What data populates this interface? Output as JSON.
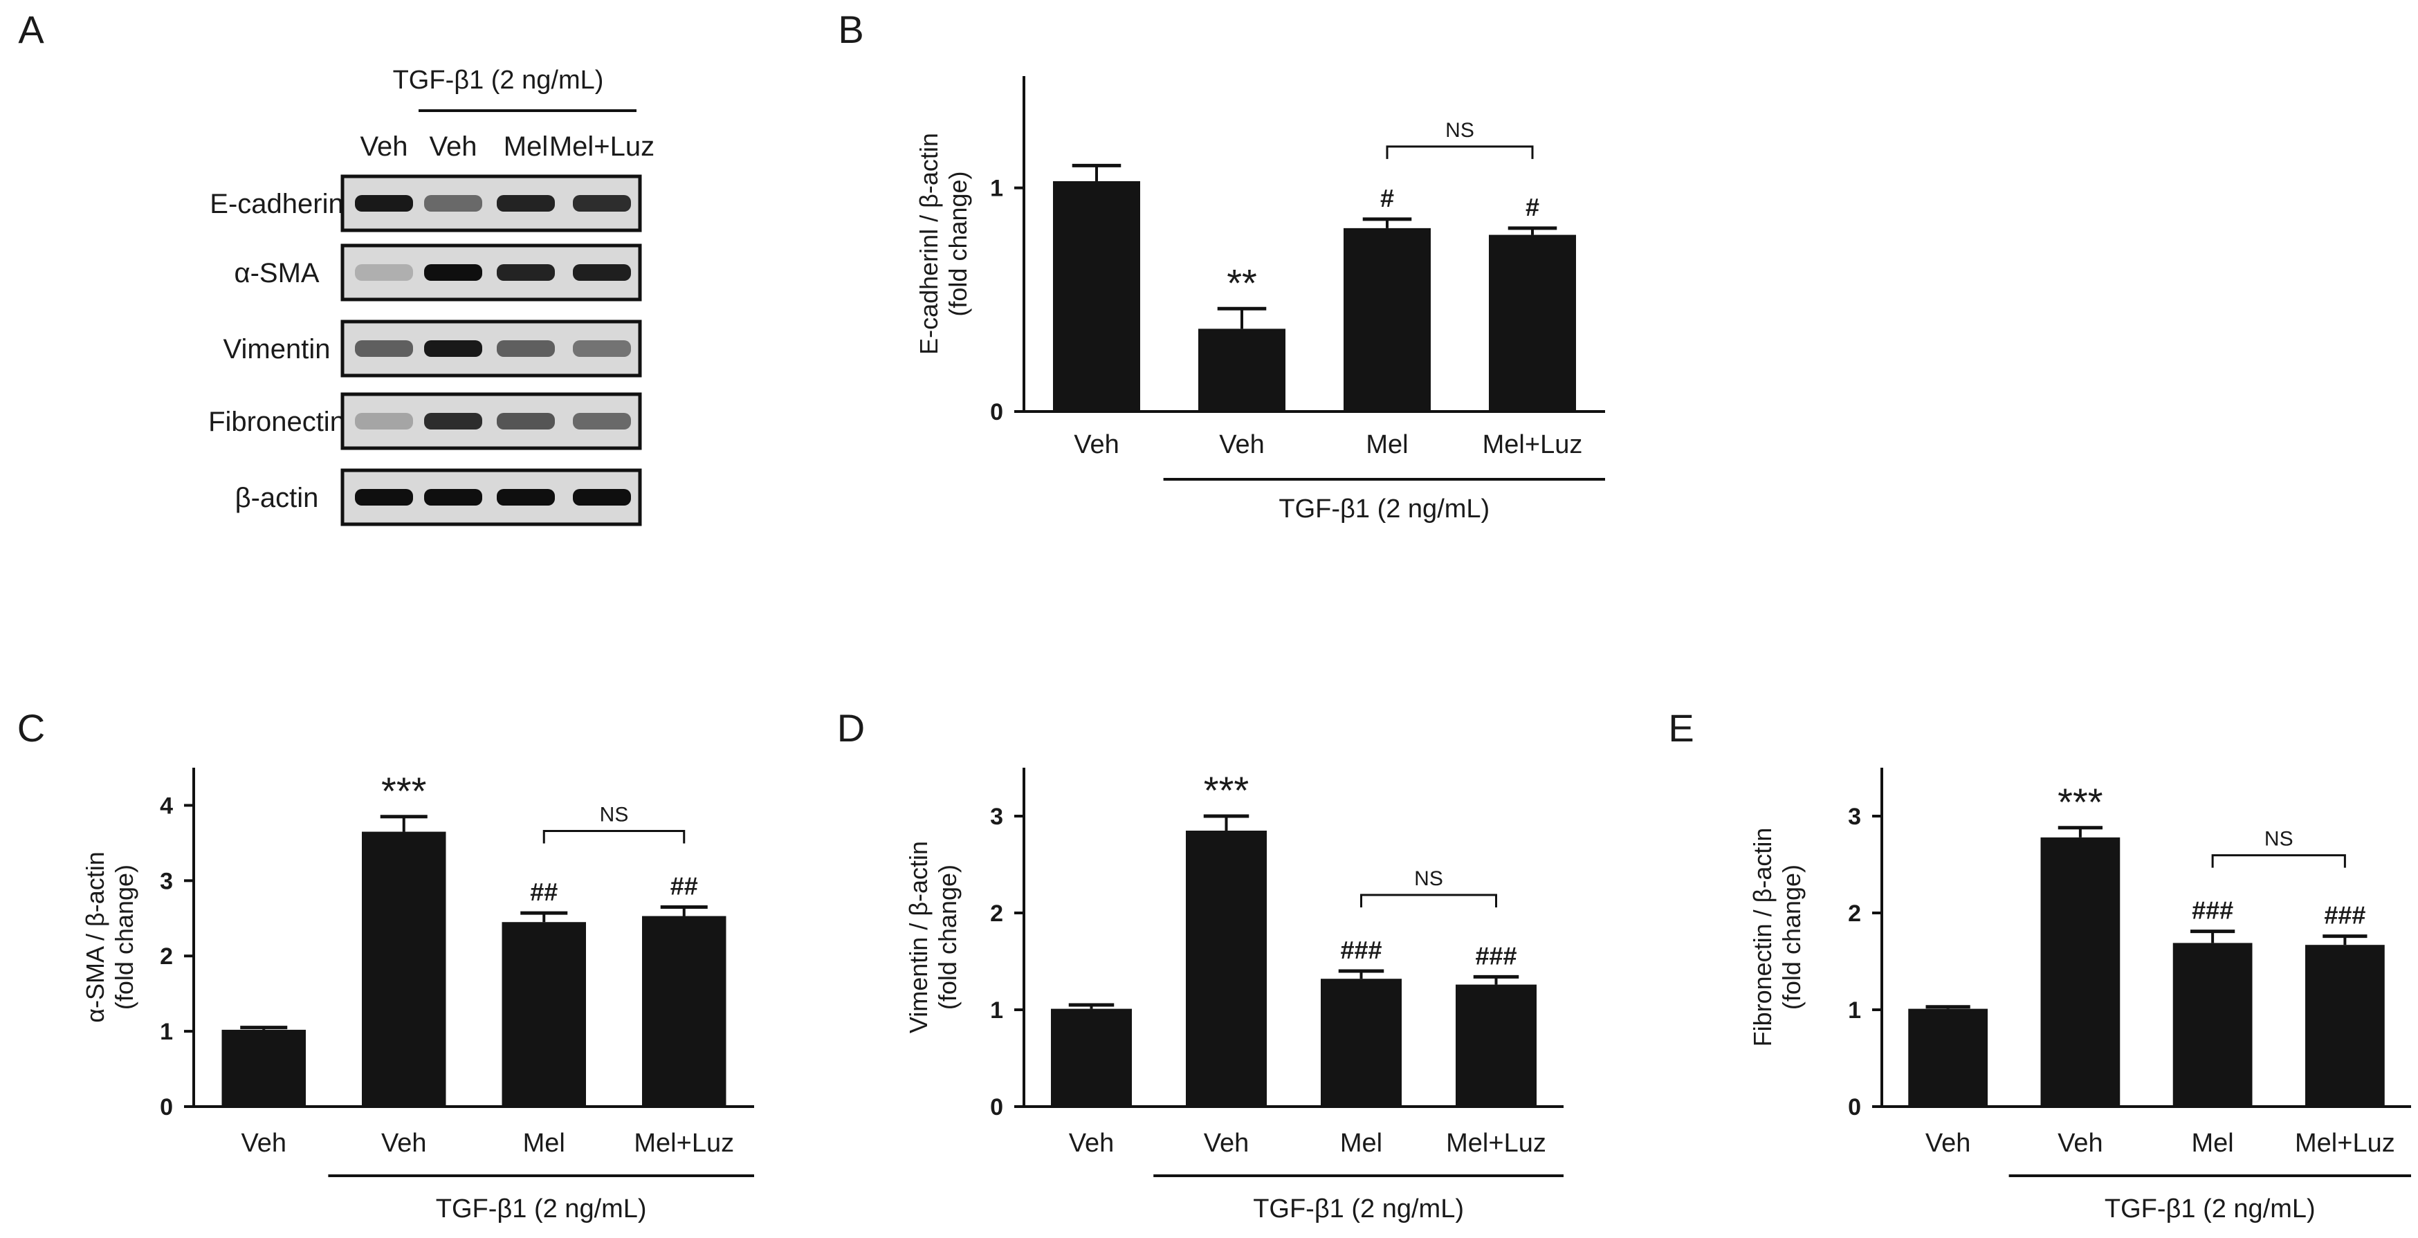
{
  "figure": {
    "panel_labels": [
      "A",
      "B",
      "C",
      "D",
      "E"
    ],
    "treatment_label": "TGF-β1 (2 ng/mL)"
  },
  "blot": {
    "lane_labels": [
      "Veh",
      "Veh",
      "Mel",
      "Mel+Luz"
    ],
    "proteins": [
      {
        "name": "E-cadherin",
        "intensities": [
          0.95,
          0.55,
          0.9,
          0.85
        ]
      },
      {
        "name": "α-SMA",
        "intensities": [
          0.2,
          1.0,
          0.9,
          0.92
        ]
      },
      {
        "name": "Vimentin",
        "intensities": [
          0.6,
          0.95,
          0.6,
          0.5
        ]
      },
      {
        "name": "Fibronectin",
        "intensities": [
          0.25,
          0.85,
          0.65,
          0.55
        ]
      },
      {
        "name": "β-actin",
        "intensities": [
          1.0,
          1.0,
          1.0,
          1.0
        ]
      }
    ]
  },
  "chart_data": [
    {
      "panel": "B",
      "type": "bar",
      "categories": [
        "Veh",
        "Veh",
        "Mel",
        "Mel+Luz"
      ],
      "values": [
        1.03,
        0.37,
        0.82,
        0.79
      ],
      "errors": [
        0.07,
        0.09,
        0.04,
        0.03
      ],
      "annotations": [
        "",
        "**",
        "#",
        "#"
      ],
      "ylabel_lines": [
        "E-cadherinl / β-actin",
        "(fold change)"
      ],
      "ylim": [
        0,
        1.5
      ],
      "yticks": [
        0,
        1
      ],
      "significance": {
        "from": 2,
        "to": 3,
        "label": "NS"
      }
    },
    {
      "panel": "C",
      "type": "bar",
      "categories": [
        "Veh",
        "Veh",
        "Mel",
        "Mel+Luz"
      ],
      "values": [
        1.02,
        3.65,
        2.45,
        2.53
      ],
      "errors": [
        0.03,
        0.2,
        0.12,
        0.12
      ],
      "annotations": [
        "",
        "***",
        "##",
        "##"
      ],
      "ylabel_lines": [
        "α-SMA / β-actin",
        "(fold change)"
      ],
      "ylim": [
        0,
        4.5
      ],
      "yticks": [
        0,
        1,
        2,
        3,
        4
      ],
      "significance": {
        "from": 2,
        "to": 3,
        "label": "NS"
      }
    },
    {
      "panel": "D",
      "type": "bar",
      "categories": [
        "Veh",
        "Veh",
        "Mel",
        "Mel+Luz"
      ],
      "values": [
        1.01,
        2.85,
        1.32,
        1.26
      ],
      "errors": [
        0.04,
        0.15,
        0.08,
        0.08
      ],
      "annotations": [
        "",
        "***",
        "###",
        "###"
      ],
      "ylabel_lines": [
        "Vimentin / β-actin",
        "(fold change)"
      ],
      "ylim": [
        0,
        3.5
      ],
      "yticks": [
        0,
        1,
        2,
        3
      ],
      "significance": {
        "from": 2,
        "to": 3,
        "label": "NS"
      }
    },
    {
      "panel": "E",
      "type": "bar",
      "categories": [
        "Veh",
        "Veh",
        "Mel",
        "Mel+Luz"
      ],
      "values": [
        1.01,
        2.78,
        1.69,
        1.67
      ],
      "errors": [
        0.02,
        0.1,
        0.12,
        0.09
      ],
      "annotations": [
        "",
        "***",
        "###",
        "###"
      ],
      "ylabel_lines": [
        "Fibronectin / β-actin",
        "(fold change)"
      ],
      "ylim": [
        0,
        3.5
      ],
      "yticks": [
        0,
        1,
        2,
        3
      ],
      "significance": {
        "from": 2,
        "to": 3,
        "label": "NS"
      }
    }
  ]
}
